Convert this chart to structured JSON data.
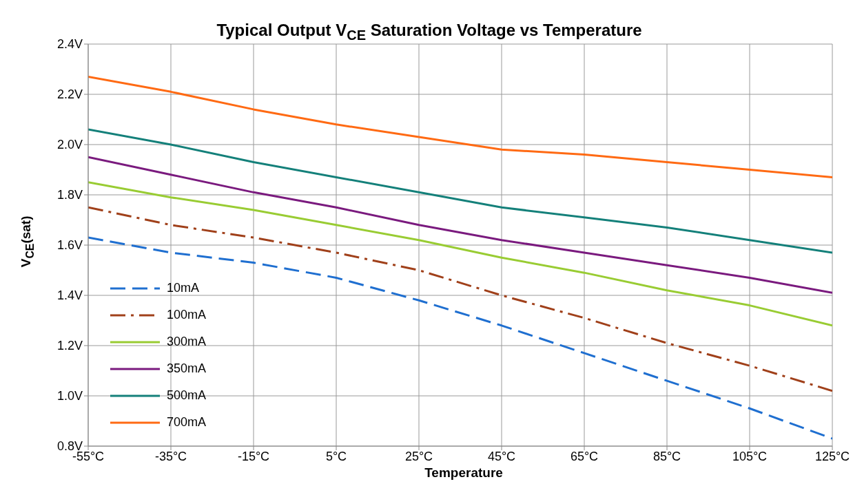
{
  "chart_data": {
    "type": "line",
    "title": "Typical Output V$_{CE}$ Saturation Voltage vs Temperature",
    "xlabel": "Temperature",
    "ylabel": "V$_{CE}$(sat)",
    "x": [
      -55,
      -35,
      -15,
      5,
      25,
      45,
      65,
      85,
      105,
      125
    ],
    "xlim": [
      -55,
      125
    ],
    "xticks": [
      {
        "value": -55,
        "label": "-55°C"
      },
      {
        "value": -35,
        "label": "-35°C"
      },
      {
        "value": -15,
        "label": "-15°C"
      },
      {
        "value": 5,
        "label": "5°C"
      },
      {
        "value": 25,
        "label": "25°C"
      },
      {
        "value": 45,
        "label": "45°C"
      },
      {
        "value": 65,
        "label": "65°C"
      },
      {
        "value": 85,
        "label": "85°C"
      },
      {
        "value": 105,
        "label": "105°C"
      },
      {
        "value": 125,
        "label": "125°C"
      }
    ],
    "ylim": [
      0.8,
      2.4
    ],
    "yticks": [
      {
        "value": 0.8,
        "label": "0.8V"
      },
      {
        "value": 1.0,
        "label": "1.0V"
      },
      {
        "value": 1.2,
        "label": "1.2V"
      },
      {
        "value": 1.4,
        "label": "1.4V"
      },
      {
        "value": 1.6,
        "label": "1.6V"
      },
      {
        "value": 1.8,
        "label": "1.8V"
      },
      {
        "value": 2.0,
        "label": "2.0V"
      },
      {
        "value": 2.2,
        "label": "2.2V"
      },
      {
        "value": 2.4,
        "label": "2.4V"
      }
    ],
    "grid": true,
    "legend": "bottom left",
    "marker": "none",
    "series": [
      {
        "name": "10mA",
        "color": "#1f6fd0",
        "line_style": "dashed",
        "values": [
          1.63,
          1.57,
          1.53,
          1.47,
          1.38,
          1.28,
          1.17,
          1.06,
          0.95,
          0.83
        ]
      },
      {
        "name": "100mA",
        "color": "#a0401a",
        "line_style": "dashdot",
        "values": [
          1.75,
          1.68,
          1.63,
          1.57,
          1.5,
          1.4,
          1.31,
          1.21,
          1.12,
          1.02
        ]
      },
      {
        "name": "300mA",
        "color": "#99cc33",
        "line_style": "solid",
        "values": [
          1.85,
          1.79,
          1.74,
          1.68,
          1.62,
          1.55,
          1.49,
          1.42,
          1.36,
          1.28
        ]
      },
      {
        "name": "350mA",
        "color": "#7a1a7e",
        "line_style": "solid",
        "values": [
          1.95,
          1.88,
          1.81,
          1.75,
          1.68,
          1.62,
          1.57,
          1.52,
          1.47,
          1.41
        ]
      },
      {
        "name": "500mA",
        "color": "#14807a",
        "line_style": "solid",
        "values": [
          2.06,
          2.0,
          1.93,
          1.87,
          1.81,
          1.75,
          1.71,
          1.67,
          1.62,
          1.57
        ]
      },
      {
        "name": "700mA",
        "color": "#ff6a13",
        "line_style": "solid",
        "values": [
          2.27,
          2.21,
          2.14,
          2.08,
          2.03,
          1.98,
          1.96,
          1.93,
          1.9,
          1.87
        ]
      }
    ]
  }
}
